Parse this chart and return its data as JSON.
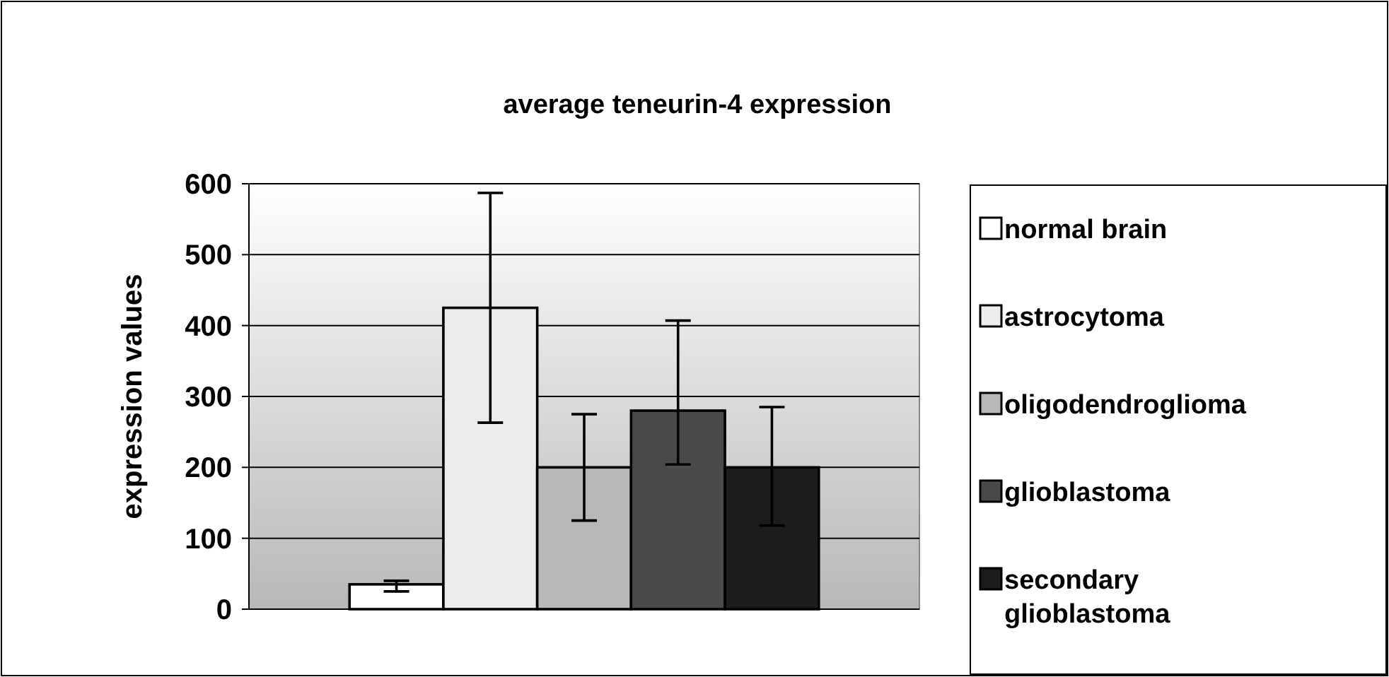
{
  "chart_data": {
    "type": "bar",
    "title": "average teneurin-4 expression",
    "ylabel": "expression values",
    "categories": [
      null
    ],
    "series": [
      {
        "name": "normal brain",
        "color": "#ffffff",
        "values": [
          35
        ],
        "errors": [
          [
            25,
            40
          ]
        ]
      },
      {
        "name": "astrocytoma",
        "color": "#ececec",
        "values": [
          425
        ],
        "errors": [
          162
        ]
      },
      {
        "name": "oligodendroglioma",
        "color": "#b8b8b8",
        "values": [
          200
        ],
        "errors": [
          75
        ]
      },
      {
        "name": "glioblastoma",
        "color": "#4a4a4a",
        "values": [
          280
        ],
        "errors": [
          [
            204,
            407
          ]
        ]
      },
      {
        "name": "secondary glioblastoma",
        "color": "#1c1c1c",
        "values": [
          200
        ],
        "errors": [
          [
            118,
            285
          ]
        ]
      }
    ],
    "ylim": [
      0,
      600
    ],
    "yticks": [
      0,
      100,
      200,
      300,
      400,
      500,
      600
    ],
    "grid": "y",
    "legend": "right"
  }
}
